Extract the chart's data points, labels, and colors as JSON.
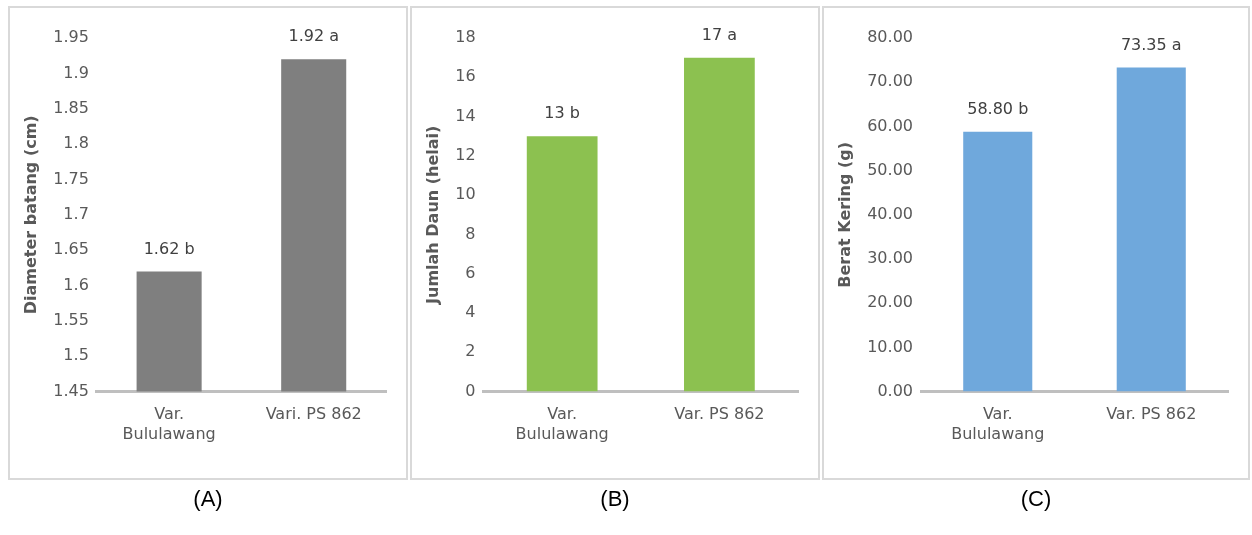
{
  "chart_data": [
    {
      "type": "bar",
      "ylabel": "Diameter batang (cm)",
      "categories": [
        "Var. Bululawang",
        "Vari. PS 862"
      ],
      "values": [
        1.62,
        1.92
      ],
      "value_labels": [
        "1.62 b",
        "1.92 a"
      ],
      "color": "#7f7f7f",
      "ylim": [
        1.45,
        1.95
      ],
      "yticks": [
        1.45,
        1.5,
        1.55,
        1.6,
        1.65,
        1.7,
        1.75,
        1.8,
        1.85,
        1.9,
        1.95
      ],
      "grid": false,
      "legend": false,
      "annotations": [
        "(A)"
      ]
    },
    {
      "type": "bar",
      "ylabel": "Jumlah Daun (helai)",
      "categories": [
        "Var. Bululawang",
        "Var. PS 862"
      ],
      "values": [
        13,
        17
      ],
      "value_labels": [
        "13 b",
        "17 a"
      ],
      "color": "#8cc150",
      "ylim": [
        0,
        18
      ],
      "yticks": [
        0,
        2,
        4,
        6,
        8,
        10,
        12,
        14,
        16,
        18
      ],
      "grid": false,
      "legend": false,
      "annotations": [
        "(B)"
      ]
    },
    {
      "type": "bar",
      "ylabel": "Berat Kering (g)",
      "categories": [
        "Var. Bululawang",
        "Var. PS 862"
      ],
      "values": [
        58.8,
        73.35
      ],
      "value_labels": [
        "58.80 b",
        "73.35 a"
      ],
      "color": "#6fa8dc",
      "ylim": [
        0,
        80
      ],
      "yticks": [
        {
          "value": 0,
          "label": "0.00"
        },
        {
          "value": 10,
          "label": "10.00"
        },
        {
          "value": 20,
          "label": "20.00"
        },
        {
          "value": 30,
          "label": "30.00"
        },
        {
          "value": 40,
          "label": "40.00"
        },
        {
          "value": 50,
          "label": "50.00"
        },
        {
          "value": 60,
          "label": "60.00"
        },
        {
          "value": 70,
          "label": "70.00"
        },
        {
          "value": 80,
          "label": "80.00"
        }
      ],
      "grid": false,
      "legend": false,
      "annotations": [
        "(C)"
      ]
    }
  ]
}
